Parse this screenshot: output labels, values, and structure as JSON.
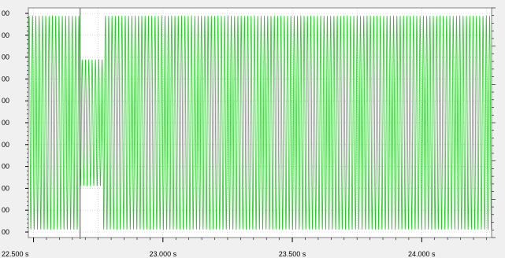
{
  "chart_data": {
    "type": "line",
    "x_unit": "s",
    "x_tick_labels": [
      "22.500 s",
      "23.000 s",
      "23.500 s",
      "24.000 s"
    ],
    "x_ticks": [
      22.5,
      23.0,
      23.5,
      24.0
    ],
    "x_range": [
      22.48,
      24.27
    ],
    "y_tick_labels": [
      "00",
      "00",
      "00",
      "00",
      "00",
      "00",
      "00",
      "00",
      "00",
      "00",
      "00"
    ],
    "y_range": [
      -1,
      1
    ],
    "grid": true,
    "signal": {
      "color": "#22cc22",
      "oscillation_period_s": 0.0128,
      "normal_amplitude": 0.93,
      "reduced_amplitude": 0.55,
      "reduced_interval_s": [
        22.68,
        22.77
      ],
      "cursor_time_s": 22.68
    },
    "colors": {
      "plot_background": "#ffffff",
      "grid": "#b8b8b8",
      "frame": "#808080",
      "cursor": "#505050"
    }
  }
}
